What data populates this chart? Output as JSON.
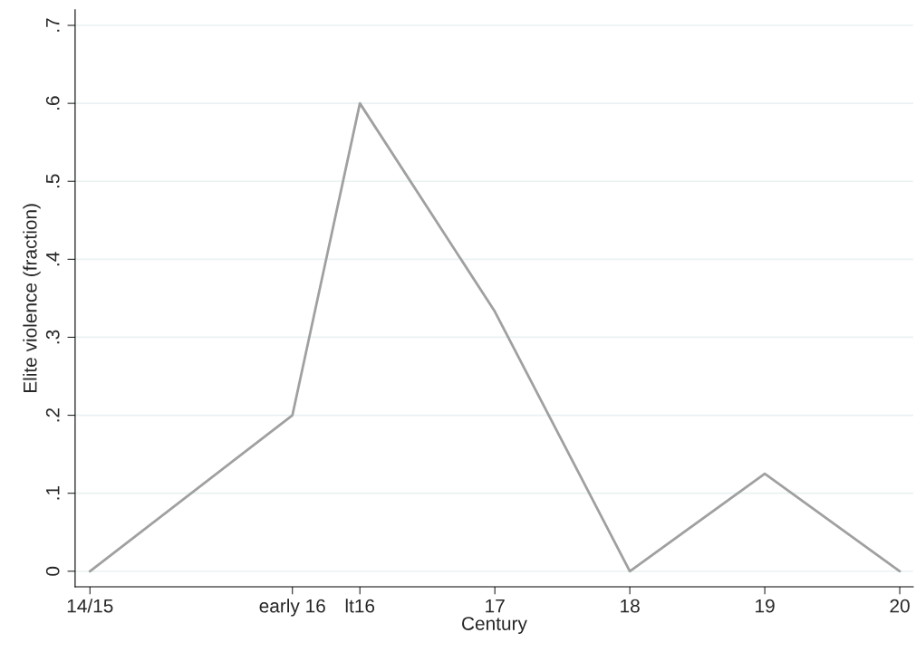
{
  "chart_data": {
    "type": "line",
    "xlabel": "Century",
    "ylabel": "Elite violence (fraction)",
    "x": [
      14,
      15.5,
      16,
      17,
      18,
      19,
      20
    ],
    "series": [
      {
        "color": "#a0a0a0",
        "values": [
          0,
          0.2,
          0.6,
          0.333,
          0,
          0.125,
          0
        ]
      }
    ],
    "xlim": [
      13.89,
      20.1
    ],
    "ylim": [
      -0.02,
      0.72
    ],
    "xticks": [
      {
        "value": 14,
        "label": "14/15"
      },
      {
        "value": 15.5,
        "label": "early 16"
      },
      {
        "value": 16,
        "label": "lt16"
      },
      17,
      18,
      19,
      20
    ],
    "yticks": [
      {
        "value": 0,
        "label": "0"
      },
      {
        "value": 0.1,
        "label": ".1"
      },
      {
        "value": 0.2,
        "label": ".2"
      },
      {
        "value": 0.3,
        "label": ".3"
      },
      {
        "value": 0.4,
        "label": ".4"
      },
      {
        "value": 0.5,
        "label": ".5"
      },
      {
        "value": 0.6,
        "label": ".6"
      },
      {
        "value": 0.7,
        "label": ".7"
      }
    ],
    "grid": "y",
    "line_style": "solid"
  }
}
